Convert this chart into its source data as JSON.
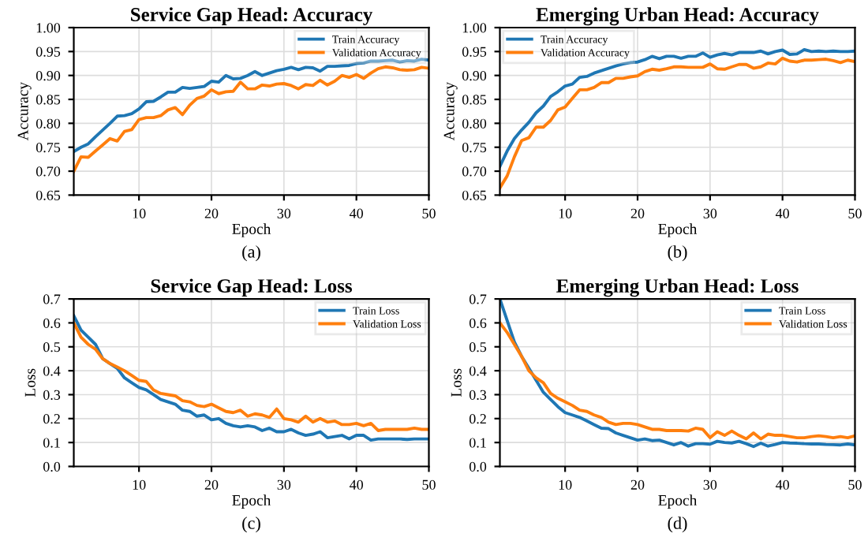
{
  "chart_data": [
    {
      "type": "line",
      "title": "Service Gap Head: Accuracy",
      "xlabel": "Epoch",
      "ylabel": "Accuracy",
      "annotations": [
        "(a)"
      ],
      "grid": true,
      "legend": "top right",
      "x": [
        1,
        2,
        3,
        4,
        5,
        6,
        7,
        8,
        9,
        10,
        11,
        12,
        13,
        14,
        15,
        16,
        17,
        18,
        19,
        20,
        21,
        22,
        23,
        24,
        25,
        26,
        27,
        28,
        29,
        30,
        31,
        32,
        33,
        34,
        35,
        36,
        37,
        38,
        39,
        40,
        41,
        42,
        43,
        44,
        45,
        46,
        47,
        48,
        49,
        50
      ],
      "xlim": [
        1,
        50
      ],
      "xticks": [
        10,
        20,
        30,
        40,
        50
      ],
      "ylim": [
        0.65,
        1.0
      ],
      "yticks": [
        {
          "value": 0.65,
          "label": "0.65"
        },
        {
          "value": 0.7,
          "label": "0.70"
        },
        {
          "value": 0.75,
          "label": "0.75"
        },
        {
          "value": 0.8,
          "label": "0.80"
        },
        {
          "value": 0.85,
          "label": "0.85"
        },
        {
          "value": 0.9,
          "label": "0.90"
        },
        {
          "value": 0.95,
          "label": "0.95"
        },
        {
          "value": 1.0,
          "label": "1.00"
        }
      ],
      "series": [
        {
          "name": "Train Accuracy",
          "color": "#1f77b4",
          "values": [
            0.741,
            0.75,
            0.757,
            0.772,
            0.786,
            0.8,
            0.815,
            0.816,
            0.82,
            0.83,
            0.845,
            0.846,
            0.855,
            0.865,
            0.865,
            0.875,
            0.873,
            0.875,
            0.877,
            0.888,
            0.886,
            0.9,
            0.893,
            0.894,
            0.9,
            0.908,
            0.9,
            0.905,
            0.91,
            0.913,
            0.917,
            0.912,
            0.917,
            0.916,
            0.909,
            0.919,
            0.919,
            0.92,
            0.921,
            0.925,
            0.926,
            0.93,
            0.93,
            0.931,
            0.932,
            0.928,
            0.931,
            0.93,
            0.934,
            0.932
          ]
        },
        {
          "name": "Validation Accuracy",
          "color": "#ff7f0e",
          "values": [
            0.7,
            0.73,
            0.729,
            0.742,
            0.755,
            0.768,
            0.763,
            0.783,
            0.787,
            0.808,
            0.812,
            0.812,
            0.816,
            0.828,
            0.833,
            0.818,
            0.838,
            0.852,
            0.857,
            0.87,
            0.862,
            0.866,
            0.867,
            0.886,
            0.872,
            0.872,
            0.88,
            0.878,
            0.882,
            0.883,
            0.879,
            0.872,
            0.881,
            0.879,
            0.89,
            0.88,
            0.888,
            0.9,
            0.896,
            0.902,
            0.894,
            0.905,
            0.914,
            0.918,
            0.916,
            0.912,
            0.911,
            0.912,
            0.917,
            0.915
          ]
        }
      ]
    },
    {
      "type": "line",
      "title": "Emerging Urban Head: Accuracy",
      "xlabel": "Epoch",
      "ylabel": "Accuracy",
      "annotations": [
        "(b)"
      ],
      "grid": true,
      "legend": "top left",
      "x": [
        1,
        2,
        3,
        4,
        5,
        6,
        7,
        8,
        9,
        10,
        11,
        12,
        13,
        14,
        15,
        16,
        17,
        18,
        19,
        20,
        21,
        22,
        23,
        24,
        25,
        26,
        27,
        28,
        29,
        30,
        31,
        32,
        33,
        34,
        35,
        36,
        37,
        38,
        39,
        40,
        41,
        42,
        43,
        44,
        45,
        46,
        47,
        48,
        49,
        50
      ],
      "xlim": [
        1,
        50
      ],
      "xticks": [
        10,
        20,
        30,
        40,
        50
      ],
      "ylim": [
        0.65,
        1.0
      ],
      "yticks": [
        {
          "value": 0.65,
          "label": "0.65"
        },
        {
          "value": 0.7,
          "label": "0.70"
        },
        {
          "value": 0.75,
          "label": "0.75"
        },
        {
          "value": 0.8,
          "label": "0.80"
        },
        {
          "value": 0.85,
          "label": "0.85"
        },
        {
          "value": 0.9,
          "label": "0.90"
        },
        {
          "value": 0.95,
          "label": "0.95"
        },
        {
          "value": 1.0,
          "label": "1.00"
        }
      ],
      "series": [
        {
          "name": "Train Accuracy",
          "color": "#1f77b4",
          "values": [
            0.71,
            0.742,
            0.768,
            0.786,
            0.802,
            0.822,
            0.836,
            0.856,
            0.866,
            0.878,
            0.882,
            0.896,
            0.898,
            0.905,
            0.91,
            0.915,
            0.92,
            0.924,
            0.927,
            0.928,
            0.933,
            0.94,
            0.935,
            0.94,
            0.94,
            0.936,
            0.94,
            0.94,
            0.947,
            0.938,
            0.943,
            0.946,
            0.943,
            0.948,
            0.948,
            0.948,
            0.951,
            0.945,
            0.95,
            0.953,
            0.944,
            0.945,
            0.954,
            0.95,
            0.951,
            0.95,
            0.951,
            0.95,
            0.95,
            0.951
          ]
        },
        {
          "name": "Validation Accuracy",
          "color": "#ff7f0e",
          "values": [
            0.665,
            0.69,
            0.73,
            0.764,
            0.77,
            0.792,
            0.792,
            0.806,
            0.828,
            0.834,
            0.852,
            0.87,
            0.87,
            0.875,
            0.885,
            0.885,
            0.894,
            0.894,
            0.897,
            0.899,
            0.908,
            0.913,
            0.911,
            0.914,
            0.918,
            0.918,
            0.917,
            0.917,
            0.917,
            0.924,
            0.914,
            0.913,
            0.918,
            0.923,
            0.923,
            0.915,
            0.918,
            0.926,
            0.924,
            0.936,
            0.93,
            0.928,
            0.932,
            0.932,
            0.933,
            0.934,
            0.931,
            0.927,
            0.932,
            0.929
          ]
        }
      ]
    },
    {
      "type": "line",
      "title": "Service Gap Head: Loss",
      "xlabel": "Epoch",
      "ylabel": "Loss",
      "annotations": [
        "(c)"
      ],
      "grid": true,
      "legend": "top right",
      "x": [
        1,
        2,
        3,
        4,
        5,
        6,
        7,
        8,
        9,
        10,
        11,
        12,
        13,
        14,
        15,
        16,
        17,
        18,
        19,
        20,
        21,
        22,
        23,
        24,
        25,
        26,
        27,
        28,
        29,
        30,
        31,
        32,
        33,
        34,
        35,
        36,
        37,
        38,
        39,
        40,
        41,
        42,
        43,
        44,
        45,
        46,
        47,
        48,
        49,
        50
      ],
      "xlim": [
        1,
        50
      ],
      "xticks": [
        10,
        20,
        30,
        40,
        50
      ],
      "ylim": [
        0.0,
        0.7
      ],
      "yticks": [
        {
          "value": 0,
          "label": "0.0"
        },
        0.1,
        0.2,
        0.3,
        0.4,
        0.5,
        0.6,
        0.7
      ],
      "series": [
        {
          "name": "Train Loss",
          "color": "#1f77b4",
          "values": [
            0.63,
            0.57,
            0.54,
            0.51,
            0.45,
            0.43,
            0.41,
            0.37,
            0.35,
            0.33,
            0.32,
            0.3,
            0.28,
            0.27,
            0.26,
            0.235,
            0.23,
            0.21,
            0.215,
            0.195,
            0.2,
            0.18,
            0.17,
            0.165,
            0.17,
            0.165,
            0.15,
            0.16,
            0.145,
            0.145,
            0.155,
            0.14,
            0.13,
            0.135,
            0.145,
            0.12,
            0.125,
            0.13,
            0.115,
            0.13,
            0.13,
            0.11,
            0.115,
            0.115,
            0.115,
            0.115,
            0.113,
            0.115,
            0.115,
            0.115
          ]
        },
        {
          "name": "Validation Loss",
          "color": "#ff7f0e",
          "values": [
            0.6,
            0.54,
            0.51,
            0.49,
            0.45,
            0.43,
            0.415,
            0.4,
            0.38,
            0.36,
            0.355,
            0.32,
            0.305,
            0.3,
            0.295,
            0.275,
            0.27,
            0.255,
            0.25,
            0.26,
            0.245,
            0.23,
            0.225,
            0.235,
            0.21,
            0.22,
            0.215,
            0.205,
            0.24,
            0.2,
            0.195,
            0.185,
            0.21,
            0.185,
            0.2,
            0.185,
            0.19,
            0.175,
            0.175,
            0.18,
            0.17,
            0.18,
            0.15,
            0.155,
            0.155,
            0.155,
            0.155,
            0.16,
            0.155,
            0.155
          ]
        }
      ]
    },
    {
      "type": "line",
      "title": "Emerging Urban Head: Loss",
      "xlabel": "Epoch",
      "ylabel": "Loss",
      "annotations": [
        "(d)"
      ],
      "grid": true,
      "legend": "top right",
      "x": [
        1,
        2,
        3,
        4,
        5,
        6,
        7,
        8,
        9,
        10,
        11,
        12,
        13,
        14,
        15,
        16,
        17,
        18,
        19,
        20,
        21,
        22,
        23,
        24,
        25,
        26,
        27,
        28,
        29,
        30,
        31,
        32,
        33,
        34,
        35,
        36,
        37,
        38,
        39,
        40,
        41,
        42,
        43,
        44,
        45,
        46,
        47,
        48,
        49,
        50
      ],
      "xlim": [
        1,
        50
      ],
      "xticks": [
        10,
        20,
        30,
        40,
        50
      ],
      "ylim": [
        0.0,
        0.7
      ],
      "yticks": [
        {
          "value": 0,
          "label": "0.0"
        },
        0.1,
        0.2,
        0.3,
        0.4,
        0.5,
        0.6,
        0.7
      ],
      "series": [
        {
          "name": "Train Loss",
          "color": "#1f77b4",
          "values": [
            0.7,
            0.61,
            0.52,
            0.46,
            0.41,
            0.36,
            0.31,
            0.28,
            0.25,
            0.225,
            0.215,
            0.205,
            0.19,
            0.175,
            0.16,
            0.158,
            0.14,
            0.13,
            0.12,
            0.11,
            0.115,
            0.108,
            0.11,
            0.1,
            0.09,
            0.1,
            0.085,
            0.095,
            0.095,
            0.093,
            0.105,
            0.1,
            0.098,
            0.105,
            0.095,
            0.083,
            0.097,
            0.085,
            0.092,
            0.1,
            0.098,
            0.097,
            0.095,
            0.094,
            0.094,
            0.092,
            0.091,
            0.09,
            0.094,
            0.09
          ]
        },
        {
          "name": "Validation Loss",
          "color": "#ff7f0e",
          "values": [
            0.6,
            0.56,
            0.51,
            0.46,
            0.4,
            0.37,
            0.35,
            0.305,
            0.285,
            0.27,
            0.255,
            0.235,
            0.23,
            0.215,
            0.205,
            0.185,
            0.175,
            0.18,
            0.18,
            0.175,
            0.165,
            0.155,
            0.155,
            0.15,
            0.15,
            0.15,
            0.148,
            0.16,
            0.155,
            0.12,
            0.145,
            0.13,
            0.148,
            0.13,
            0.115,
            0.14,
            0.115,
            0.135,
            0.13,
            0.13,
            0.125,
            0.12,
            0.12,
            0.125,
            0.128,
            0.125,
            0.12,
            0.125,
            0.12,
            0.128
          ]
        }
      ]
    }
  ]
}
